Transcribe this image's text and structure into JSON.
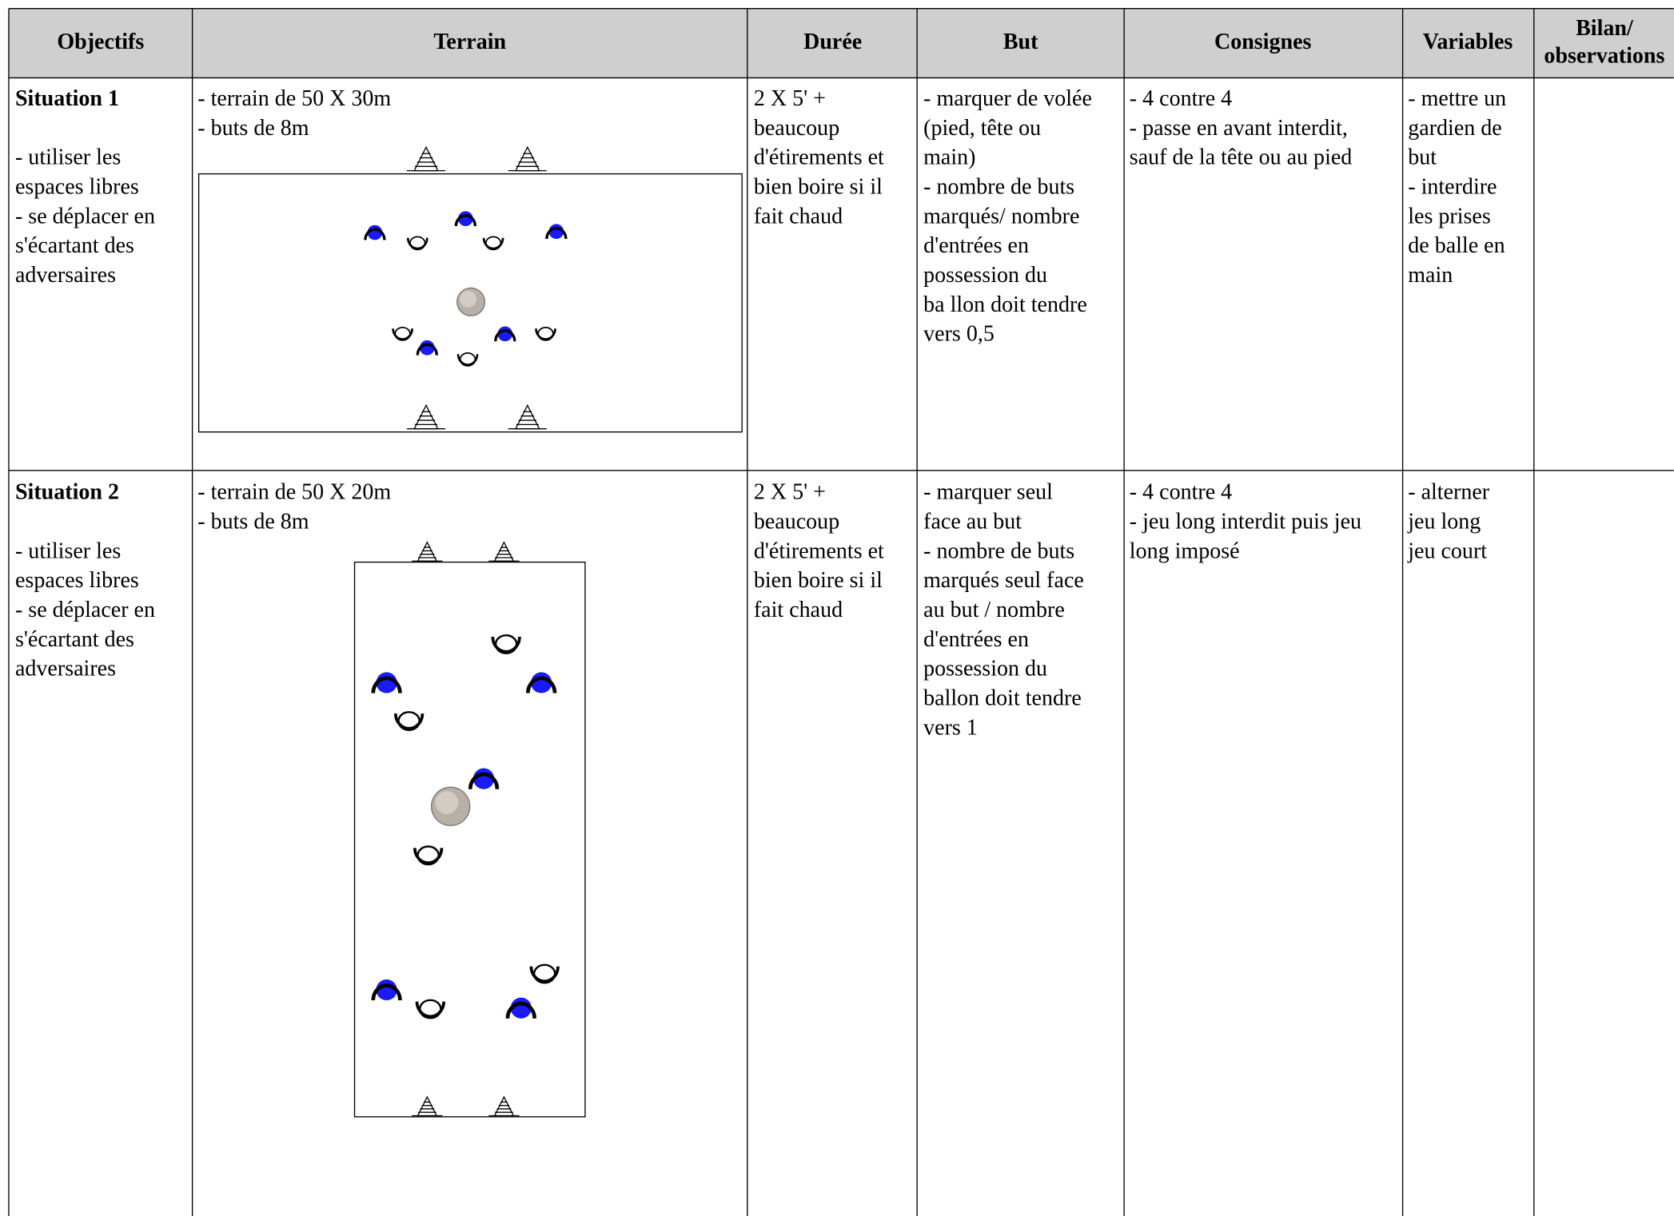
{
  "table": {
    "header": [
      [
        "Objectifs"
      ],
      [
        "Terrain"
      ],
      [
        "Durée"
      ],
      [
        "But"
      ],
      [
        "Consignes"
      ],
      [
        "Variables"
      ],
      [
        "Bilan/",
        "observations"
      ]
    ],
    "rows": [
      {
        "title": "Situation 1",
        "cells": [
          [
            "- utiliser les",
            "espaces libres",
            "- se déplacer en",
            "s'écartant des",
            "adversaires"
          ],
          [
            "- terrain de 50 X 30m",
            "- buts de 8m"
          ],
          [
            "2 X 5' +",
            "beaucoup",
            "d'étirements et",
            "bien boire si il",
            "fait chaud"
          ],
          [
            "- marquer de volée",
            "(pied, tête ou",
            "main)",
            "- nombre de buts",
            "marqués/ nombre",
            "d'entrées en",
            "possession du",
            "ba llon doit tendre",
            "vers 0,5"
          ],
          [
            "- 4 contre 4",
            "- passe en avant interdit,",
            "sauf de la tête ou au pied"
          ],
          [
            "- mettre un",
            "gardien de",
            "but",
            "- interdire",
            "les prises",
            "de balle en",
            "main"
          ]
        ]
      },
      {
        "title": "Situation 2",
        "cells": [
          [
            "- utiliser les",
            "espaces libres",
            "- se déplacer en",
            "s'écartant des",
            "adversaires"
          ],
          [
            "- terrain de 50 X 20m",
            "- buts de 8m"
          ],
          [
            "2 X 5' +",
            "beaucoup",
            "d'étirements et",
            "bien boire si il",
            "fait chaud"
          ],
          [
            "- marquer seul",
            "face au but",
            "- nombre de buts",
            "marqués seul face",
            "au but / nombre",
            "d'entrées en",
            "possession du",
            "ballon doit tendre",
            "vers 1"
          ],
          [
            "- 4 contre 4",
            "- jeu long interdit puis jeu",
            "long imposé"
          ],
          [
            "- alterner",
            "jeu long",
            "jeu court"
          ]
        ]
      }
    ]
  }
}
